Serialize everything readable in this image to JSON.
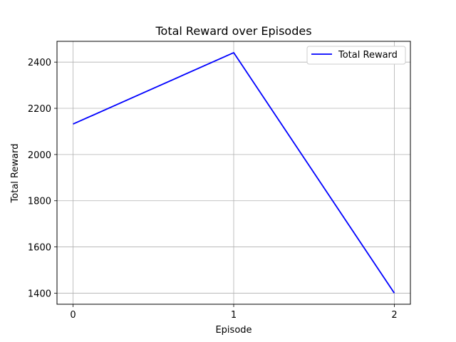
{
  "chart_data": {
    "type": "line",
    "title": "Total Reward over Episodes",
    "xlabel": "Episode",
    "ylabel": "Total Reward",
    "x": [
      0,
      1,
      2
    ],
    "xticks": [
      0,
      1,
      2
    ],
    "yticks": [
      1400,
      1600,
      1800,
      2000,
      2200,
      2400
    ],
    "xlim": [
      -0.1,
      2.1
    ],
    "ylim": [
      1352,
      2490
    ],
    "grid": true,
    "legend_position": "top-right",
    "series": [
      {
        "name": "Total Reward",
        "color": "#0000ff",
        "values": [
          2132,
          2441,
          1400
        ]
      }
    ]
  }
}
